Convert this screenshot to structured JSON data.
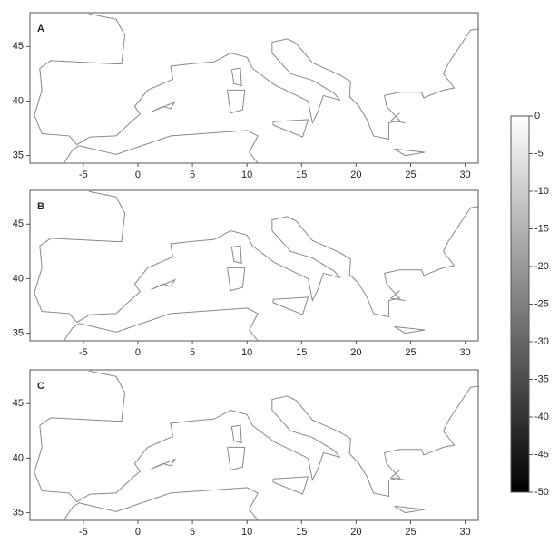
{
  "panels": [
    {
      "label": "A",
      "xlim": [
        -9.9,
        31.2
      ],
      "ylim": [
        34.3,
        48.1
      ],
      "xticks": [
        -5,
        0,
        5,
        10,
        15,
        20,
        25,
        30
      ],
      "yticks": [
        35,
        40,
        45
      ]
    },
    {
      "label": "B",
      "xlim": [
        -9.9,
        31.2
      ],
      "ylim": [
        34.3,
        48.1
      ],
      "xticks": [
        -5,
        0,
        5,
        10,
        15,
        20,
        25,
        30
      ],
      "yticks": [
        35,
        40,
        45
      ]
    },
    {
      "label": "C",
      "xlim": [
        -9.9,
        31.2
      ],
      "ylim": [
        34.3,
        48.1
      ],
      "xticks": [
        -5,
        0,
        5,
        10,
        15,
        20,
        25,
        30
      ],
      "yticks": [
        35,
        40,
        45
      ]
    }
  ],
  "colorbar": {
    "lim": [
      -50,
      0
    ],
    "ticks": [
      0,
      -5,
      -10,
      -15,
      -20,
      -25,
      -30,
      -35,
      -40,
      -45,
      -50
    ]
  }
}
